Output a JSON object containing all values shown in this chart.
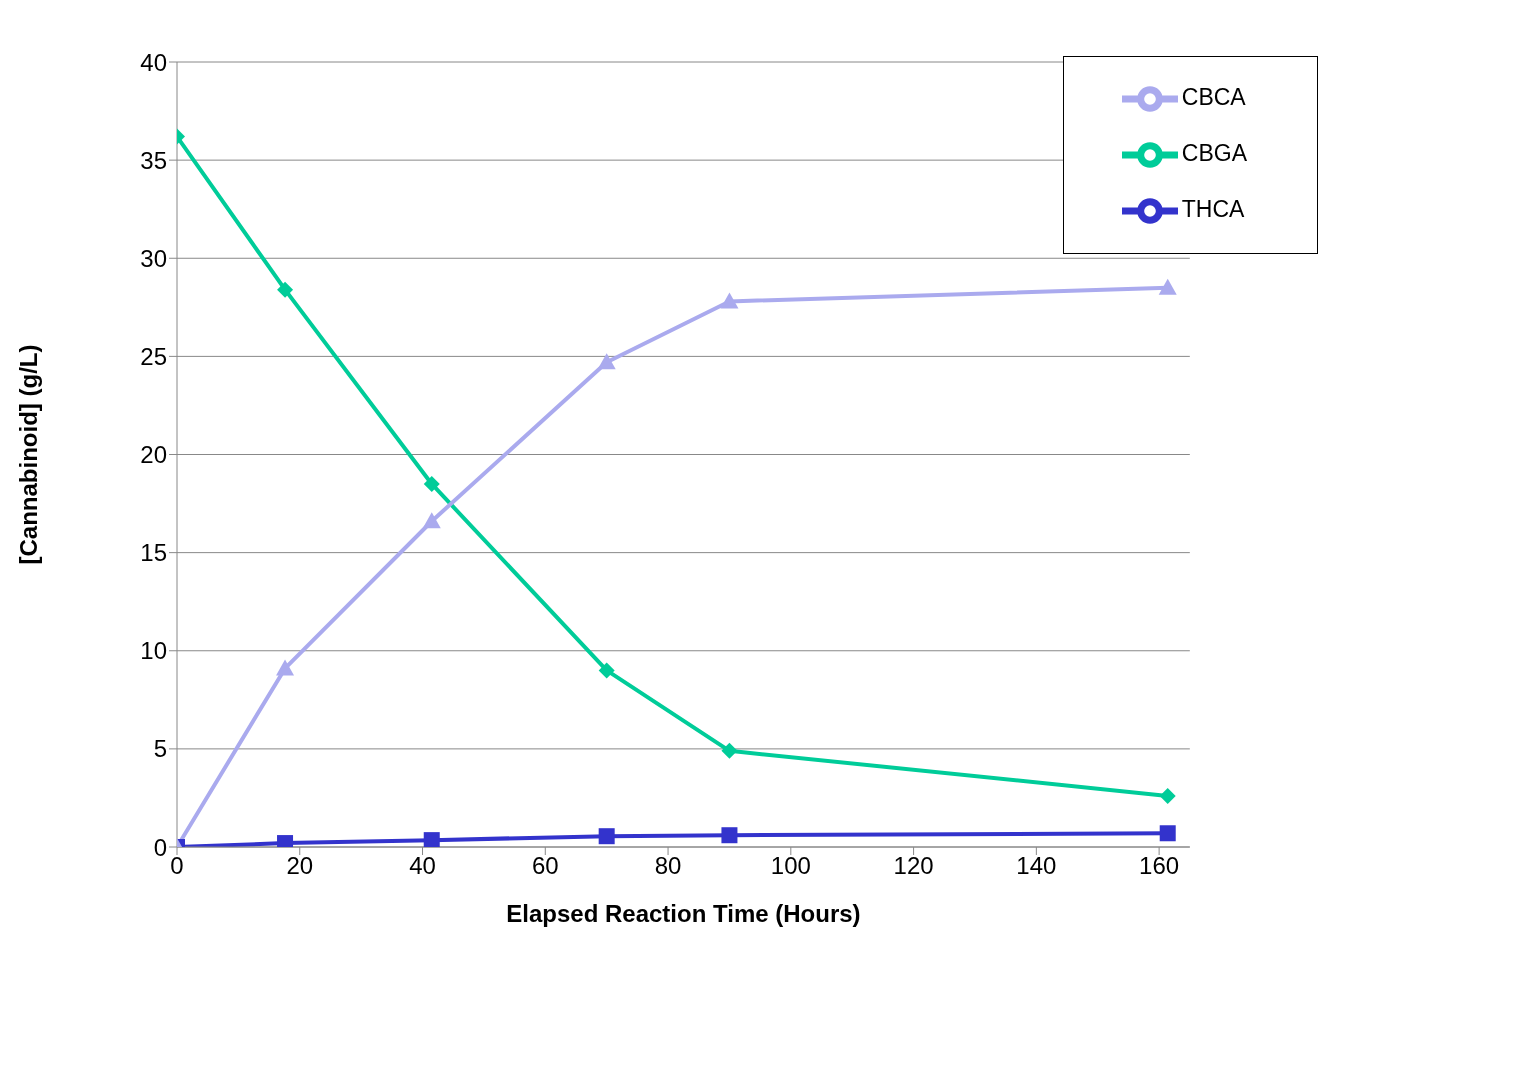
{
  "chart_data": {
    "type": "line",
    "xlabel": "Elapsed Reaction Time (Hours)",
    "ylabel": "[Cannabinoid] (g/L)",
    "x": [
      0,
      17.6,
      41.5,
      70,
      90,
      161.4
    ],
    "series": [
      {
        "name": "CBGA",
        "color": "#00cc99",
        "marker": "diamond",
        "values": [
          36.2,
          28.4,
          18.5,
          9.0,
          4.9,
          2.6
        ]
      },
      {
        "name": "THCA",
        "color": "#3333cc",
        "marker": "square",
        "values": [
          0,
          0.2,
          0.35,
          0.55,
          0.6,
          0.7
        ]
      },
      {
        "name": "CBCA",
        "color": "#aaaaee",
        "marker": "triangle",
        "values": [
          0,
          9.1,
          16.6,
          24.7,
          27.8,
          28.5
        ]
      }
    ],
    "xlim": [
      0,
      165
    ],
    "xticks": [
      0,
      20,
      40,
      60,
      80,
      100,
      120,
      140,
      160
    ],
    "ylim": [
      0,
      40
    ],
    "yticks": [
      0,
      5,
      10,
      15,
      20,
      25,
      30,
      35,
      40
    ],
    "grid": "y",
    "legend": "top right",
    "line_style": "solid"
  }
}
